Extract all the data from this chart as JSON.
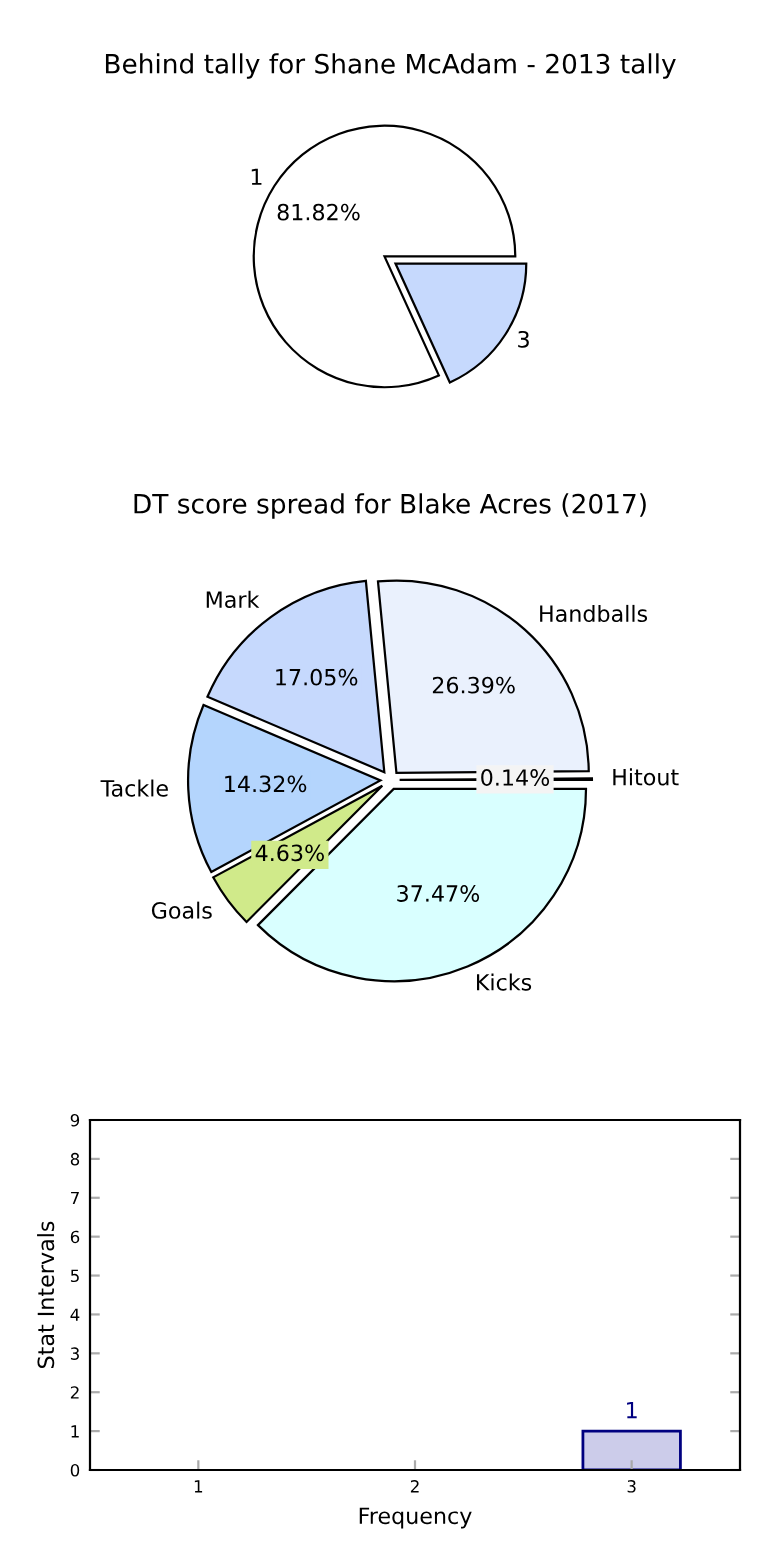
{
  "chart_data": [
    {
      "type": "pie",
      "title": "Behind tally for Shane McAdam - 2013 tally",
      "categories": [
        "1",
        "3"
      ],
      "values": [
        81.82,
        18.18
      ],
      "colors": [
        "#ffffff",
        "#c6d9fd"
      ],
      "value_labels": [
        "81.82%",
        null
      ]
    },
    {
      "type": "pie",
      "title": "DT score spread for Blake Acres (2017)",
      "categories": [
        "Hitout",
        "Handballs",
        "Mark",
        "Tackle",
        "Goals",
        "Kicks"
      ],
      "values": [
        0.14,
        26.39,
        17.05,
        14.32,
        4.63,
        37.47
      ],
      "colors": [
        "#f4f4f4",
        "#eaf1fd",
        "#c6d9fd",
        "#b4d5fd",
        "#d0ea8a",
        "#d9ffff"
      ],
      "value_labels": [
        "0.14%",
        "26.39%",
        "17.05%",
        "14.32%",
        "4.63%",
        "37.47%"
      ]
    },
    {
      "type": "bar",
      "xlabel": "Frequency",
      "ylabel": "Stat Intervals",
      "categories": [
        "1",
        "2",
        "3"
      ],
      "values": [
        null,
        null,
        1
      ],
      "value_labels": [
        null,
        null,
        "1"
      ],
      "color": "#ccccea",
      "ylim": [
        0,
        9
      ],
      "yticks": [
        0,
        1,
        2,
        3,
        4,
        5,
        6,
        7,
        8,
        9
      ]
    }
  ]
}
